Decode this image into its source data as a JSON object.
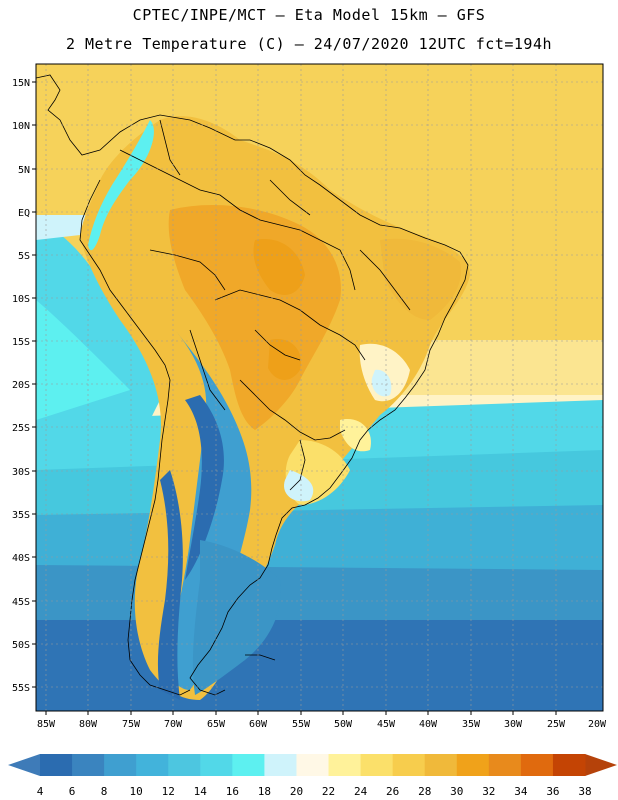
{
  "title_line1": "CPTEC/INPE/MCT –  Eta Model 15km – GFS",
  "title_line2": "2 Metre Temperature (C) – 24/07/2020 12UTC fct=194h",
  "lat_labels": [
    "15N",
    "10N",
    "5N",
    "EQ",
    "5S",
    "10S",
    "15S",
    "20S",
    "25S",
    "30S",
    "35S",
    "40S",
    "45S",
    "50S",
    "55S"
  ],
  "lon_labels": [
    "85W",
    "80W",
    "75W",
    "70W",
    "65W",
    "60W",
    "55W",
    "50W",
    "45W",
    "40W",
    "35W",
    "30W",
    "25W",
    "20W"
  ],
  "colorbar": {
    "labels": [
      "4",
      "6",
      "8",
      "10",
      "12",
      "14",
      "16",
      "18",
      "20",
      "22",
      "24",
      "26",
      "28",
      "30",
      "32",
      "34",
      "36",
      "38"
    ],
    "colors": [
      "#2b6cb0",
      "#3a84bf",
      "#3f9fd0",
      "#42b3db",
      "#4dc6e0",
      "#52d8e8",
      "#5df0f0",
      "#cff3fb",
      "#fff8e6",
      "#fff29a",
      "#fbe06a",
      "#f7cd4d",
      "#f0b93a",
      "#f0a21a",
      "#e88a1c",
      "#e06a0e",
      "#c44404"
    ],
    "low_color": "#3e7bb8",
    "high_color": "#b5420a"
  }
}
